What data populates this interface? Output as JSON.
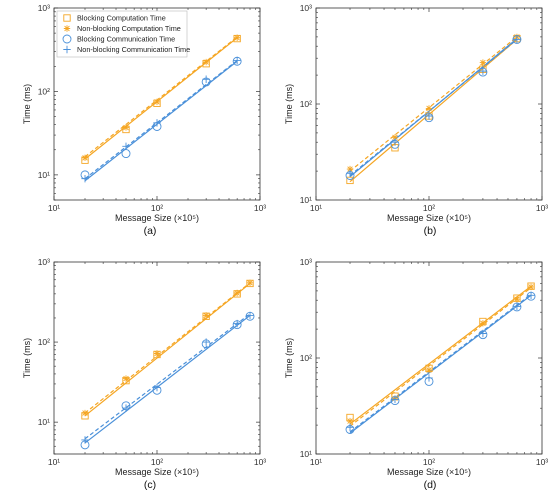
{
  "colors": {
    "orange": "#F5A623",
    "blue": "#4A90D9",
    "axis": "#333333"
  },
  "legend": {
    "placement": "top-left",
    "entries": [
      {
        "label": "Blocking Computation Time",
        "color": "#F5A623",
        "marker": "square"
      },
      {
        "label": "Non-blocking Computation Time",
        "color": "#F5A623",
        "marker": "asterisk"
      },
      {
        "label": "Blocking Communication Time",
        "color": "#4A90D9",
        "marker": "circle"
      },
      {
        "label": "Non-blocking Communication Time",
        "color": "#4A90D9",
        "marker": "plus"
      }
    ]
  },
  "chart_data": [
    {
      "type": "scatter",
      "panel": "(a)",
      "caption": "(a)",
      "xlabel": "Message Size (×10⁵)",
      "ylabel": "Time (ms)",
      "xscale": "log",
      "yscale": "log",
      "xlim": [
        10,
        1000
      ],
      "ylim": [
        5,
        1000
      ],
      "xticks": [
        "10¹",
        "10²",
        "10³"
      ],
      "yticks": [
        "10¹",
        "10²",
        "10³"
      ],
      "grid": false,
      "has_legend": true,
      "series": [
        {
          "name": "Blocking Computation Time",
          "color": "#F5A623",
          "marker": "square",
          "x": [
            20,
            50,
            100,
            300,
            600
          ],
          "y": [
            15,
            35,
            72,
            215,
            430
          ],
          "fit": [
            [
              20,
              15.5
            ],
            [
              600,
              440
            ]
          ]
        },
        {
          "name": "Non-blocking Computation Time",
          "color": "#F5A623",
          "marker": "asterisk",
          "x": [
            20,
            50,
            100,
            300,
            600
          ],
          "y": [
            16,
            37,
            75,
            225,
            440
          ],
          "fit": [
            [
              20,
              16.5
            ],
            [
              600,
              450
            ]
          ]
        },
        {
          "name": "Blocking Communication Time",
          "color": "#4A90D9",
          "marker": "circle",
          "x": [
            20,
            50,
            100,
            300,
            600
          ],
          "y": [
            10,
            18,
            38,
            130,
            230
          ],
          "fit": [
            [
              20,
              8.5
            ],
            [
              600,
              230
            ]
          ]
        },
        {
          "name": "Non-blocking Communication Time",
          "color": "#4A90D9",
          "marker": "plus",
          "x": [
            20,
            50,
            100,
            300,
            600
          ],
          "y": [
            9,
            22,
            42,
            140,
            235
          ],
          "fit": [
            [
              20,
              9
            ],
            [
              600,
              235
            ]
          ]
        }
      ]
    },
    {
      "type": "scatter",
      "panel": "(b)",
      "caption": "(b)",
      "xlabel": "Message Size (×10⁵)",
      "ylabel": "Time (ms)",
      "xscale": "log",
      "yscale": "log",
      "xlim": [
        10,
        1000
      ],
      "ylim": [
        10,
        1000
      ],
      "xticks": [
        "10¹",
        "10²",
        "10³"
      ],
      "yticks": [
        "10¹",
        "10²",
        "10³"
      ],
      "grid": false,
      "has_legend": false,
      "series": [
        {
          "name": "Blocking Computation Time",
          "color": "#F5A623",
          "marker": "square",
          "x": [
            20,
            50,
            100,
            300,
            600
          ],
          "y": [
            16,
            35,
            75,
            230,
            480
          ],
          "fit": [
            [
              20,
              15.5
            ],
            [
              600,
              470
            ]
          ]
        },
        {
          "name": "Non-blocking Computation Time",
          "color": "#F5A623",
          "marker": "asterisk",
          "x": [
            20,
            50,
            100,
            300,
            600
          ],
          "y": [
            21,
            45,
            90,
            270,
            500
          ],
          "fit": [
            [
              20,
              20
            ],
            [
              600,
              500
            ]
          ]
        },
        {
          "name": "Blocking Communication Time",
          "color": "#4A90D9",
          "marker": "circle",
          "x": [
            20,
            50,
            100,
            300,
            600
          ],
          "y": [
            18,
            38,
            72,
            215,
            470
          ],
          "fit": [
            [
              20,
              17.5
            ],
            [
              600,
              480
            ]
          ]
        },
        {
          "name": "Non-blocking Communication Time",
          "color": "#4A90D9",
          "marker": "plus",
          "x": [
            20,
            50,
            100,
            300,
            600
          ],
          "y": [
            19,
            40,
            75,
            220,
            470
          ],
          "fit": [
            [
              20,
              18
            ],
            [
              600,
              470
            ]
          ]
        }
      ]
    },
    {
      "type": "scatter",
      "panel": "(c)",
      "caption": "(c)",
      "xlabel": "Message Size (×10⁵)",
      "ylabel": "Time (ms)",
      "xscale": "log",
      "yscale": "log",
      "xlim": [
        10,
        1000
      ],
      "ylim": [
        4,
        1000
      ],
      "xticks": [
        "10¹",
        "10²",
        "10³"
      ],
      "yticks": [
        "10¹",
        "10²",
        "10³"
      ],
      "grid": false,
      "has_legend": false,
      "series": [
        {
          "name": "Blocking Computation Time",
          "color": "#F5A623",
          "marker": "square",
          "x": [
            20,
            50,
            100,
            300,
            600,
            800
          ],
          "y": [
            12,
            33,
            70,
            210,
            400,
            540
          ],
          "fit": [
            [
              20,
              12
            ],
            [
              800,
              540
            ]
          ]
        },
        {
          "name": "Non-blocking Computation Time",
          "color": "#F5A623",
          "marker": "asterisk",
          "x": [
            20,
            50,
            100,
            300,
            600,
            800
          ],
          "y": [
            13,
            35,
            72,
            215,
            410,
            550
          ],
          "fit": [
            [
              20,
              13
            ],
            [
              800,
              550
            ]
          ]
        },
        {
          "name": "Blocking Communication Time",
          "color": "#4A90D9",
          "marker": "circle",
          "x": [
            20,
            50,
            100,
            300,
            600,
            800
          ],
          "y": [
            5.2,
            16,
            25,
            95,
            165,
            210
          ],
          "fit": [
            [
              20,
              5.5
            ],
            [
              800,
              215
            ]
          ]
        },
        {
          "name": "Non-blocking Communication Time",
          "color": "#4A90D9",
          "marker": "plus",
          "x": [
            20,
            50,
            100,
            300,
            600,
            800
          ],
          "y": [
            6,
            15,
            27,
            100,
            170,
            215
          ],
          "fit": [
            [
              20,
              6.2
            ],
            [
              800,
              225
            ]
          ]
        }
      ]
    },
    {
      "type": "scatter",
      "panel": "(d)",
      "caption": "(d)",
      "xlabel": "Message Size (×10⁵)",
      "ylabel": "Time (ms)",
      "xscale": "log",
      "yscale": "log",
      "xlim": [
        10,
        1000
      ],
      "ylim": [
        10,
        1000
      ],
      "xticks": [
        "10¹",
        "10²",
        "10³"
      ],
      "yticks": [
        "10¹",
        "10²",
        "10³"
      ],
      "grid": false,
      "has_legend": false,
      "series": [
        {
          "name": "Blocking Computation Time",
          "color": "#F5A623",
          "marker": "square",
          "x": [
            20,
            50,
            100,
            300,
            600,
            800
          ],
          "y": [
            24,
            40,
            78,
            240,
            420,
            560
          ],
          "fit": [
            [
              20,
              20.5
            ],
            [
              800,
              560
            ]
          ]
        },
        {
          "name": "Non-blocking Computation Time",
          "color": "#F5A623",
          "marker": "asterisk",
          "x": [
            20,
            50,
            100,
            300,
            600,
            800
          ],
          "y": [
            22,
            38,
            75,
            230,
            410,
            550
          ],
          "fit": [
            [
              20,
              19.5
            ],
            [
              800,
              540
            ]
          ]
        },
        {
          "name": "Blocking Communication Time",
          "color": "#4A90D9",
          "marker": "circle",
          "x": [
            20,
            50,
            100,
            300,
            600,
            800
          ],
          "y": [
            18,
            36,
            57,
            175,
            340,
            440
          ],
          "fit": [
            [
              20,
              16.5
            ],
            [
              800,
              450
            ]
          ]
        },
        {
          "name": "Non-blocking Communication Time",
          "color": "#4A90D9",
          "marker": "plus",
          "x": [
            20,
            50,
            100,
            300,
            600,
            800
          ],
          "y": [
            19,
            37,
            62,
            180,
            345,
            450
          ],
          "fit": [
            [
              20,
              17
            ],
            [
              800,
              460
            ]
          ]
        }
      ]
    }
  ]
}
